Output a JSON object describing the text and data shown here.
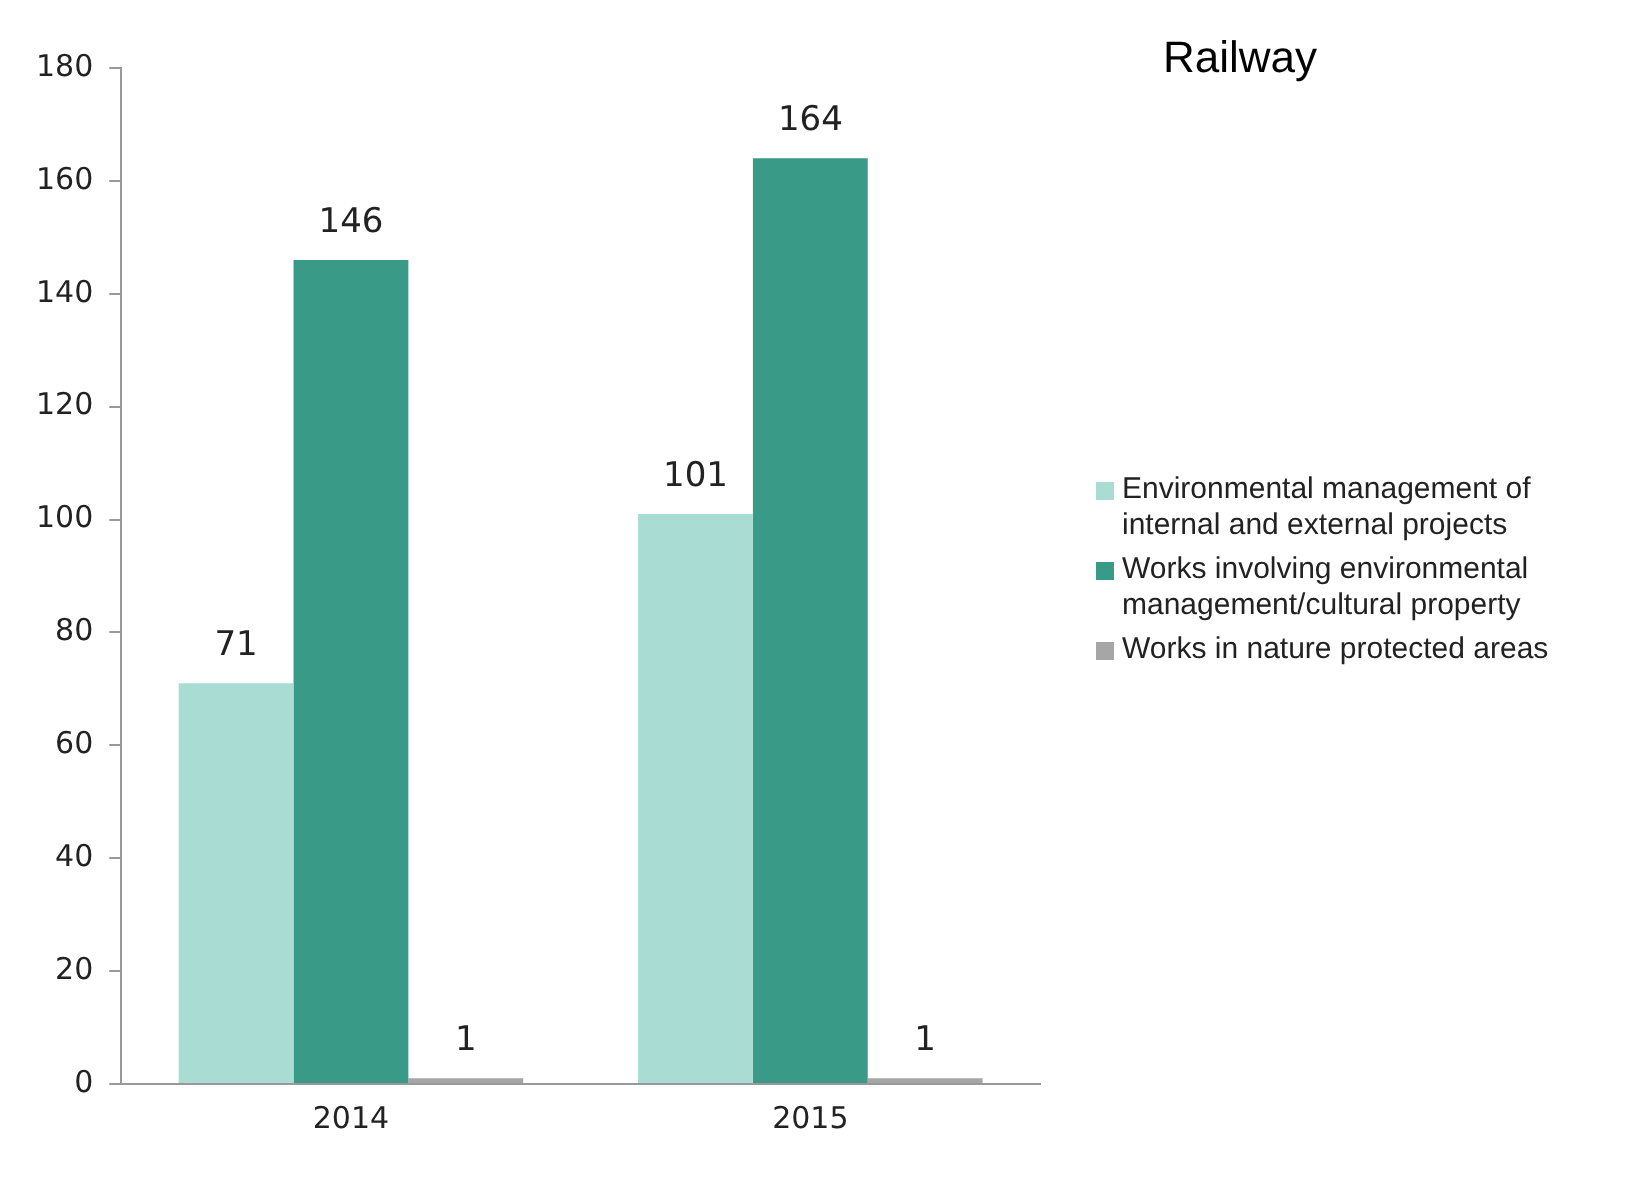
{
  "chart_data": {
    "type": "bar",
    "title": "Railway",
    "categories": [
      "2014",
      "2015"
    ],
    "series": [
      {
        "name": "Environmental management of internal and external projects",
        "color": "#a9ddd4",
        "values": [
          71,
          101
        ]
      },
      {
        "name": "Works involving environmental management/cultural property",
        "color": "#3a9a88",
        "values": [
          146,
          164
        ]
      },
      {
        "name": "Works in nature protected areas",
        "color": "#a6a6a6",
        "values": [
          1,
          1
        ]
      }
    ],
    "ylim": [
      0,
      180
    ],
    "yticks": [
      0,
      20,
      40,
      60,
      80,
      100,
      120,
      140,
      160,
      180
    ],
    "grid": false,
    "legend": "right",
    "data_labels": true
  }
}
